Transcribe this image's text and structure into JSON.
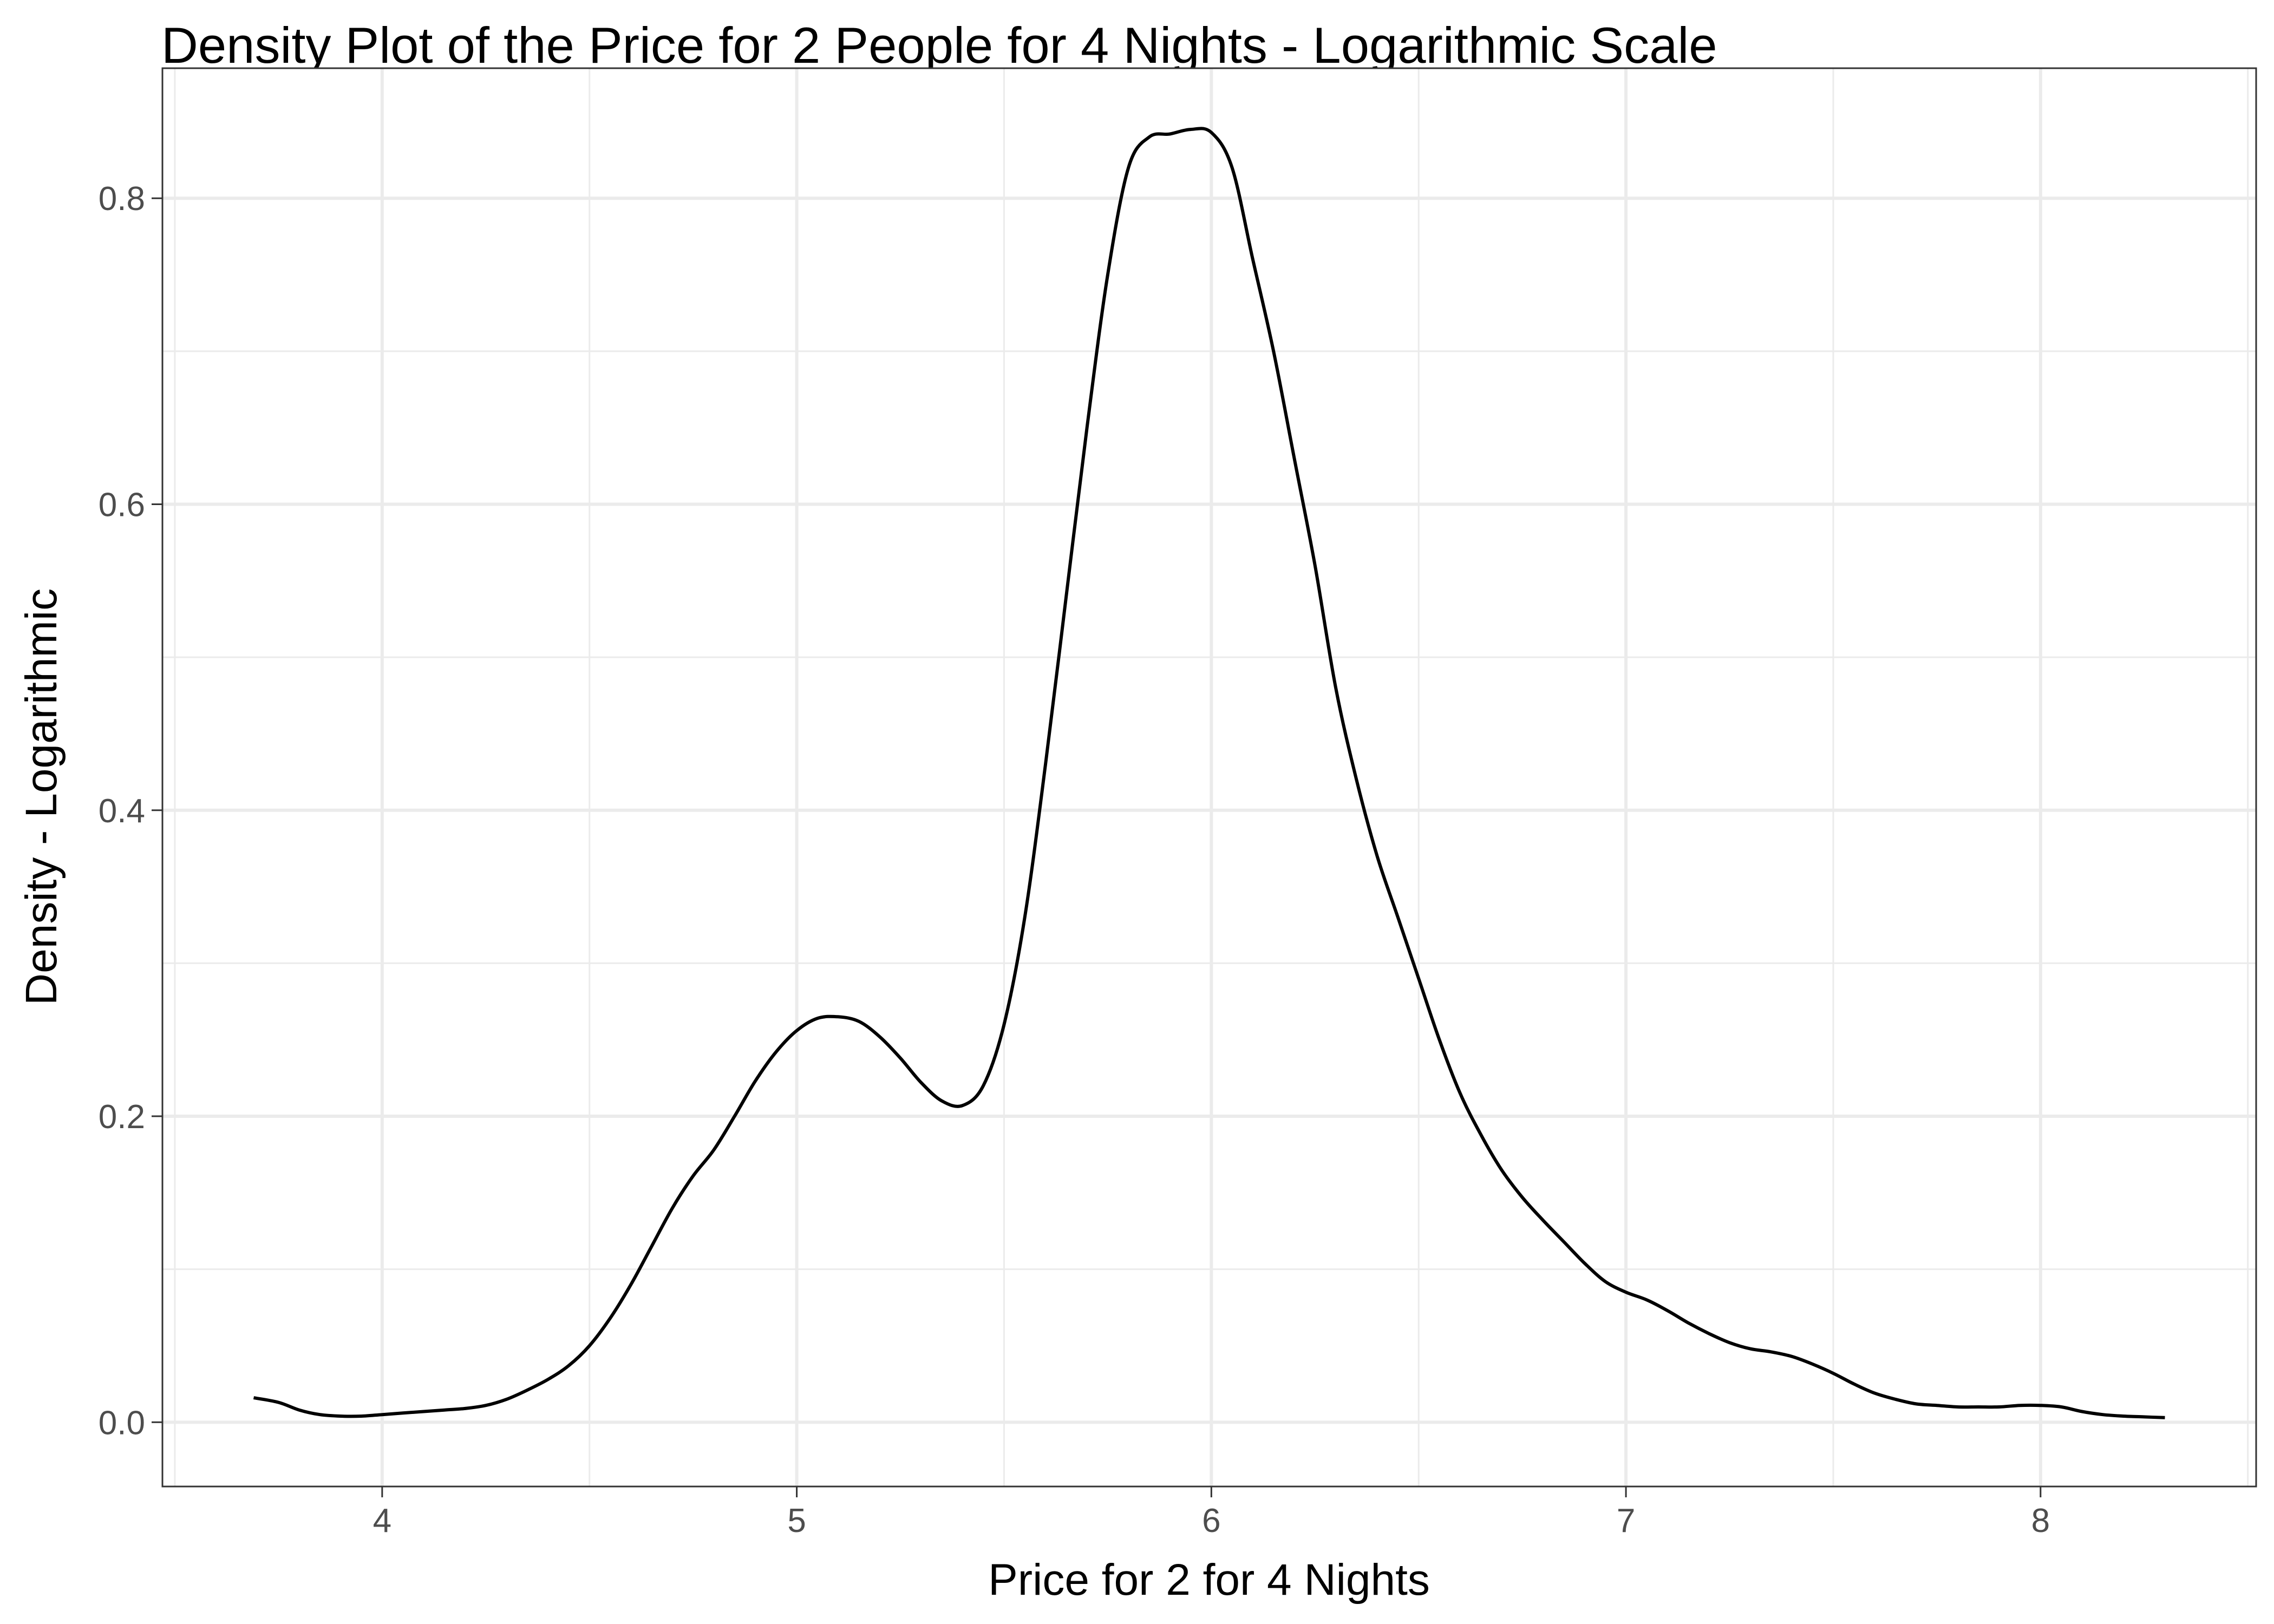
{
  "chart_data": {
    "type": "line",
    "title": "Density Plot of the Price for 2 People for 4 Nights - Logarithmic Scale",
    "xlabel": "Price for 2 for 4 Nights",
    "ylabel": "Density - Logarithmic",
    "xlim": [
      3.47,
      8.52
    ],
    "ylim": [
      -0.042,
      0.885
    ],
    "x_ticks": [
      4,
      5,
      6,
      7,
      8
    ],
    "x_tick_labels": [
      "4",
      "5",
      "6",
      "7",
      "8"
    ],
    "y_ticks": [
      0.0,
      0.2,
      0.4,
      0.6,
      0.8
    ],
    "y_tick_labels": [
      "0.0",
      "0.2",
      "0.4",
      "0.6",
      "0.8"
    ],
    "x_minor_ticks": [
      3.5,
      4.5,
      5.5,
      6.5,
      7.5,
      8.5
    ],
    "y_minor_ticks": [
      0.1,
      0.3,
      0.5,
      0.7
    ],
    "grid": true,
    "legend": "none",
    "colors": {
      "line": "#000000",
      "grid": "#ebebeb",
      "border": "#333333",
      "tick_text": "#4d4d4d",
      "background": "#ffffff"
    },
    "series": [
      {
        "x": [
          3.69,
          3.75,
          3.8,
          3.85,
          3.9,
          3.95,
          4.0,
          4.05,
          4.1,
          4.15,
          4.2,
          4.25,
          4.3,
          4.35,
          4.4,
          4.45,
          4.5,
          4.55,
          4.6,
          4.65,
          4.7,
          4.75,
          4.8,
          4.85,
          4.9,
          4.95,
          5.0,
          5.05,
          5.1,
          5.15,
          5.2,
          5.25,
          5.3,
          5.35,
          5.4,
          5.45,
          5.5,
          5.55,
          5.6,
          5.65,
          5.7,
          5.75,
          5.8,
          5.85,
          5.9,
          5.95,
          6.0,
          6.05,
          6.1,
          6.15,
          6.2,
          6.25,
          6.3,
          6.35,
          6.4,
          6.45,
          6.5,
          6.55,
          6.6,
          6.65,
          6.7,
          6.75,
          6.8,
          6.85,
          6.9,
          6.95,
          7.0,
          7.05,
          7.1,
          7.15,
          7.2,
          7.25,
          7.3,
          7.35,
          7.4,
          7.45,
          7.5,
          7.55,
          7.6,
          7.65,
          7.7,
          7.75,
          7.8,
          7.85,
          7.9,
          7.95,
          8.0,
          8.05,
          8.1,
          8.15,
          8.2,
          8.25,
          8.3
        ],
        "y": [
          0.016,
          0.013,
          0.008,
          0.005,
          0.004,
          0.004,
          0.005,
          0.006,
          0.007,
          0.008,
          0.009,
          0.011,
          0.015,
          0.021,
          0.028,
          0.037,
          0.05,
          0.068,
          0.09,
          0.115,
          0.14,
          0.161,
          0.178,
          0.2,
          0.223,
          0.242,
          0.256,
          0.264,
          0.265,
          0.262,
          0.252,
          0.238,
          0.222,
          0.21,
          0.207,
          0.22,
          0.26,
          0.33,
          0.43,
          0.54,
          0.65,
          0.75,
          0.82,
          0.84,
          0.842,
          0.845,
          0.843,
          0.82,
          0.76,
          0.7,
          0.63,
          0.56,
          0.48,
          0.42,
          0.37,
          0.33,
          0.29,
          0.25,
          0.215,
          0.188,
          0.165,
          0.147,
          0.132,
          0.118,
          0.104,
          0.092,
          0.085,
          0.08,
          0.073,
          0.065,
          0.058,
          0.052,
          0.048,
          0.046,
          0.043,
          0.038,
          0.032,
          0.025,
          0.019,
          0.015,
          0.012,
          0.011,
          0.01,
          0.01,
          0.01,
          0.011,
          0.011,
          0.01,
          0.007,
          0.005,
          0.004,
          0.0035,
          0.003
        ]
      }
    ]
  }
}
